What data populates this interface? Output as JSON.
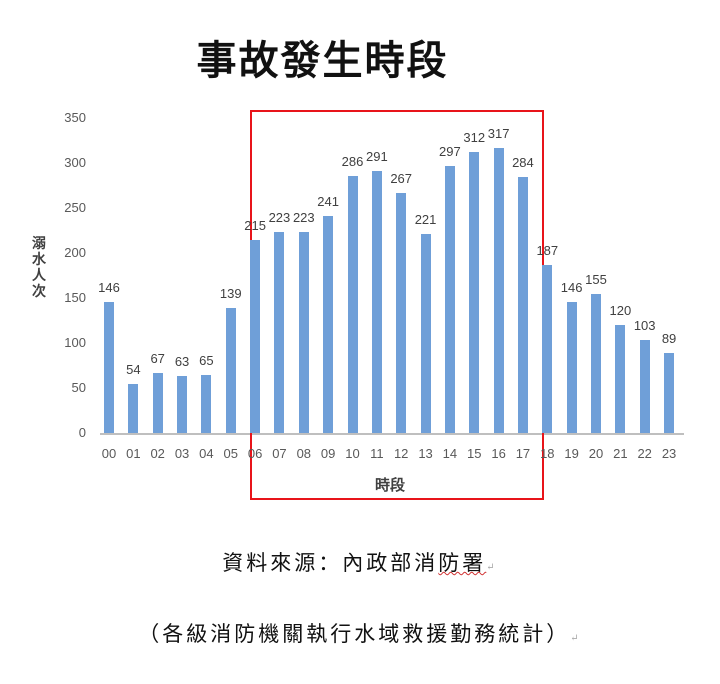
{
  "title": "事故發生時段",
  "chart_data": {
    "type": "bar",
    "title": "事故發生時段",
    "xlabel": "時段",
    "ylabel": "溺水人次",
    "ylim": [
      0,
      350
    ],
    "yticks": [
      0,
      50,
      100,
      150,
      200,
      250,
      300,
      350
    ],
    "grid": false,
    "legend": null,
    "categories": [
      "00",
      "01",
      "02",
      "03",
      "04",
      "05",
      "06",
      "07",
      "08",
      "09",
      "10",
      "11",
      "12",
      "13",
      "14",
      "15",
      "16",
      "17",
      "18",
      "19",
      "20",
      "21",
      "22",
      "23"
    ],
    "values": [
      146,
      54,
      67,
      63,
      65,
      139,
      215,
      223,
      223,
      241,
      286,
      291,
      267,
      221,
      297,
      312,
      317,
      284,
      187,
      146,
      155,
      120,
      103,
      89
    ],
    "bar_color": "#6f9fd8",
    "annotations": [
      {
        "type": "rectangle",
        "color": "#e8141a",
        "covers": "06-17 and x-axis label"
      }
    ]
  },
  "source": {
    "line1": "資料來源：內政部消防署",
    "line2": "（各級消防機關執行水域救援勤務統計）",
    "mark": "↵"
  }
}
